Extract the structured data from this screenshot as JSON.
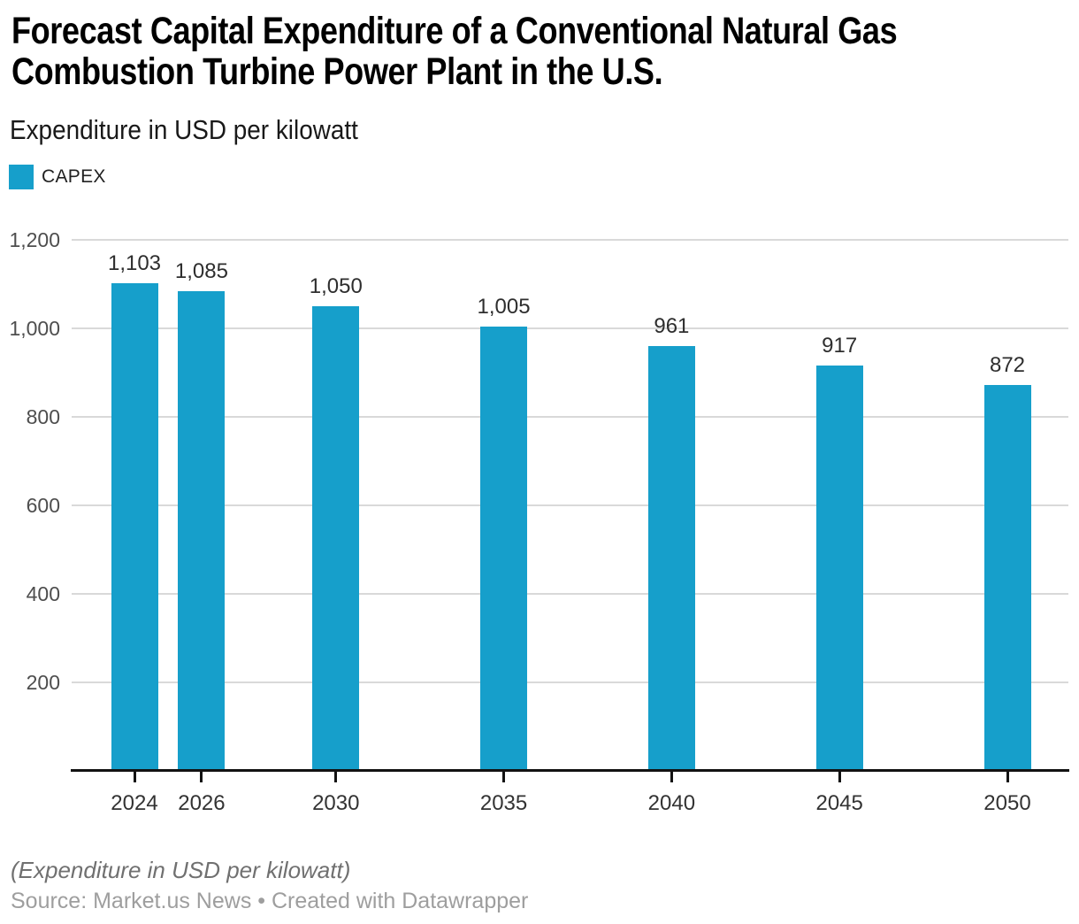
{
  "header": {
    "title_line1": "Forecast Capital Expenditure of a Conventional Natural Gas",
    "title_line2": "Combustion Turbine Power Plant in the U.S.",
    "subtitle": "Expenditure in USD per kilowatt"
  },
  "legend": {
    "items": [
      {
        "label": "CAPEX",
        "color": "#169fcb"
      }
    ]
  },
  "chart_data": {
    "type": "bar",
    "title": "Forecast Capital Expenditure of a Conventional Natural Gas Combustion Turbine Power Plant in the U.S.",
    "subtitle": "Expenditure in USD per kilowatt",
    "categories": [
      "2024",
      "2026",
      "2030",
      "2035",
      "2040",
      "2045",
      "2050"
    ],
    "x_numeric": [
      2024,
      2026,
      2030,
      2035,
      2040,
      2045,
      2050
    ],
    "values": [
      1103,
      1085,
      1050,
      1005,
      961,
      917,
      872
    ],
    "value_labels": [
      "1,103",
      "1,085",
      "1,050",
      "1,005",
      "961",
      "917",
      "872"
    ],
    "series_name": "CAPEX",
    "xlabel": "",
    "ylabel": "",
    "ylim": [
      0,
      1200
    ],
    "y_ticks": [
      200,
      400,
      600,
      800,
      1000,
      1200
    ],
    "y_tick_labels": [
      "200",
      "400",
      "600",
      "800",
      "1,000",
      "1,200"
    ],
    "grid": "horizontal-only",
    "legend_position": "top-left",
    "bar_color": "#169fcb",
    "gridline_color": "#d9d9d9",
    "axis_color": "#121212",
    "value_label_color": "#2e2e2e",
    "x_label_color": "#333333",
    "y_label_color": "#4e4e4e"
  },
  "footer": {
    "note": "(Expenditure in USD per kilowatt)",
    "source": "Source: Market.us News • Created with Datawrapper"
  }
}
